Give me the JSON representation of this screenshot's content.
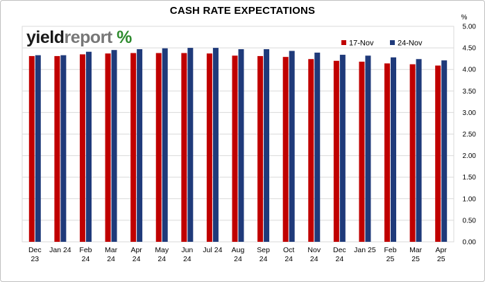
{
  "chart_data": {
    "type": "bar",
    "title": "CASH RATE EXPECTATIONS",
    "ylabel": "%",
    "ylim": [
      0,
      5
    ],
    "yticks": [
      "0.00",
      "0.50",
      "1.00",
      "1.50",
      "2.00",
      "2.50",
      "3.00",
      "3.50",
      "4.00",
      "4.50",
      "5.00"
    ],
    "grid": true,
    "legend_position": "top-right",
    "categories": [
      [
        "Dec",
        "23"
      ],
      [
        "Jan 24"
      ],
      [
        "Feb",
        "24"
      ],
      [
        "Mar",
        "24"
      ],
      [
        "Apr",
        "24"
      ],
      [
        "May",
        "24"
      ],
      [
        "Jun",
        "24"
      ],
      [
        "Jul 24"
      ],
      [
        "Aug",
        "24"
      ],
      [
        "Sep",
        "24"
      ],
      [
        "Oct",
        "24"
      ],
      [
        "Nov",
        "24"
      ],
      [
        "Dec",
        "24"
      ],
      [
        "Jan 25"
      ],
      [
        "Feb",
        "25"
      ],
      [
        "Mar",
        "25"
      ],
      [
        "Apr",
        "25"
      ]
    ],
    "series": [
      {
        "name": "17-Nov",
        "color": "#c00000",
        "values": [
          4.31,
          4.31,
          4.35,
          4.37,
          4.38,
          4.38,
          4.38,
          4.37,
          4.32,
          4.31,
          4.29,
          4.24,
          4.2,
          4.18,
          4.14,
          4.12,
          4.09
        ]
      },
      {
        "name": "24-Nov",
        "color": "#1f3a7a",
        "values": [
          4.33,
          4.33,
          4.41,
          4.45,
          4.47,
          4.49,
          4.5,
          4.5,
          4.47,
          4.47,
          4.43,
          4.39,
          4.34,
          4.32,
          4.28,
          4.24,
          4.21
        ]
      }
    ]
  },
  "logo": {
    "part1": "yield",
    "part2": "report",
    "part3": "%"
  }
}
